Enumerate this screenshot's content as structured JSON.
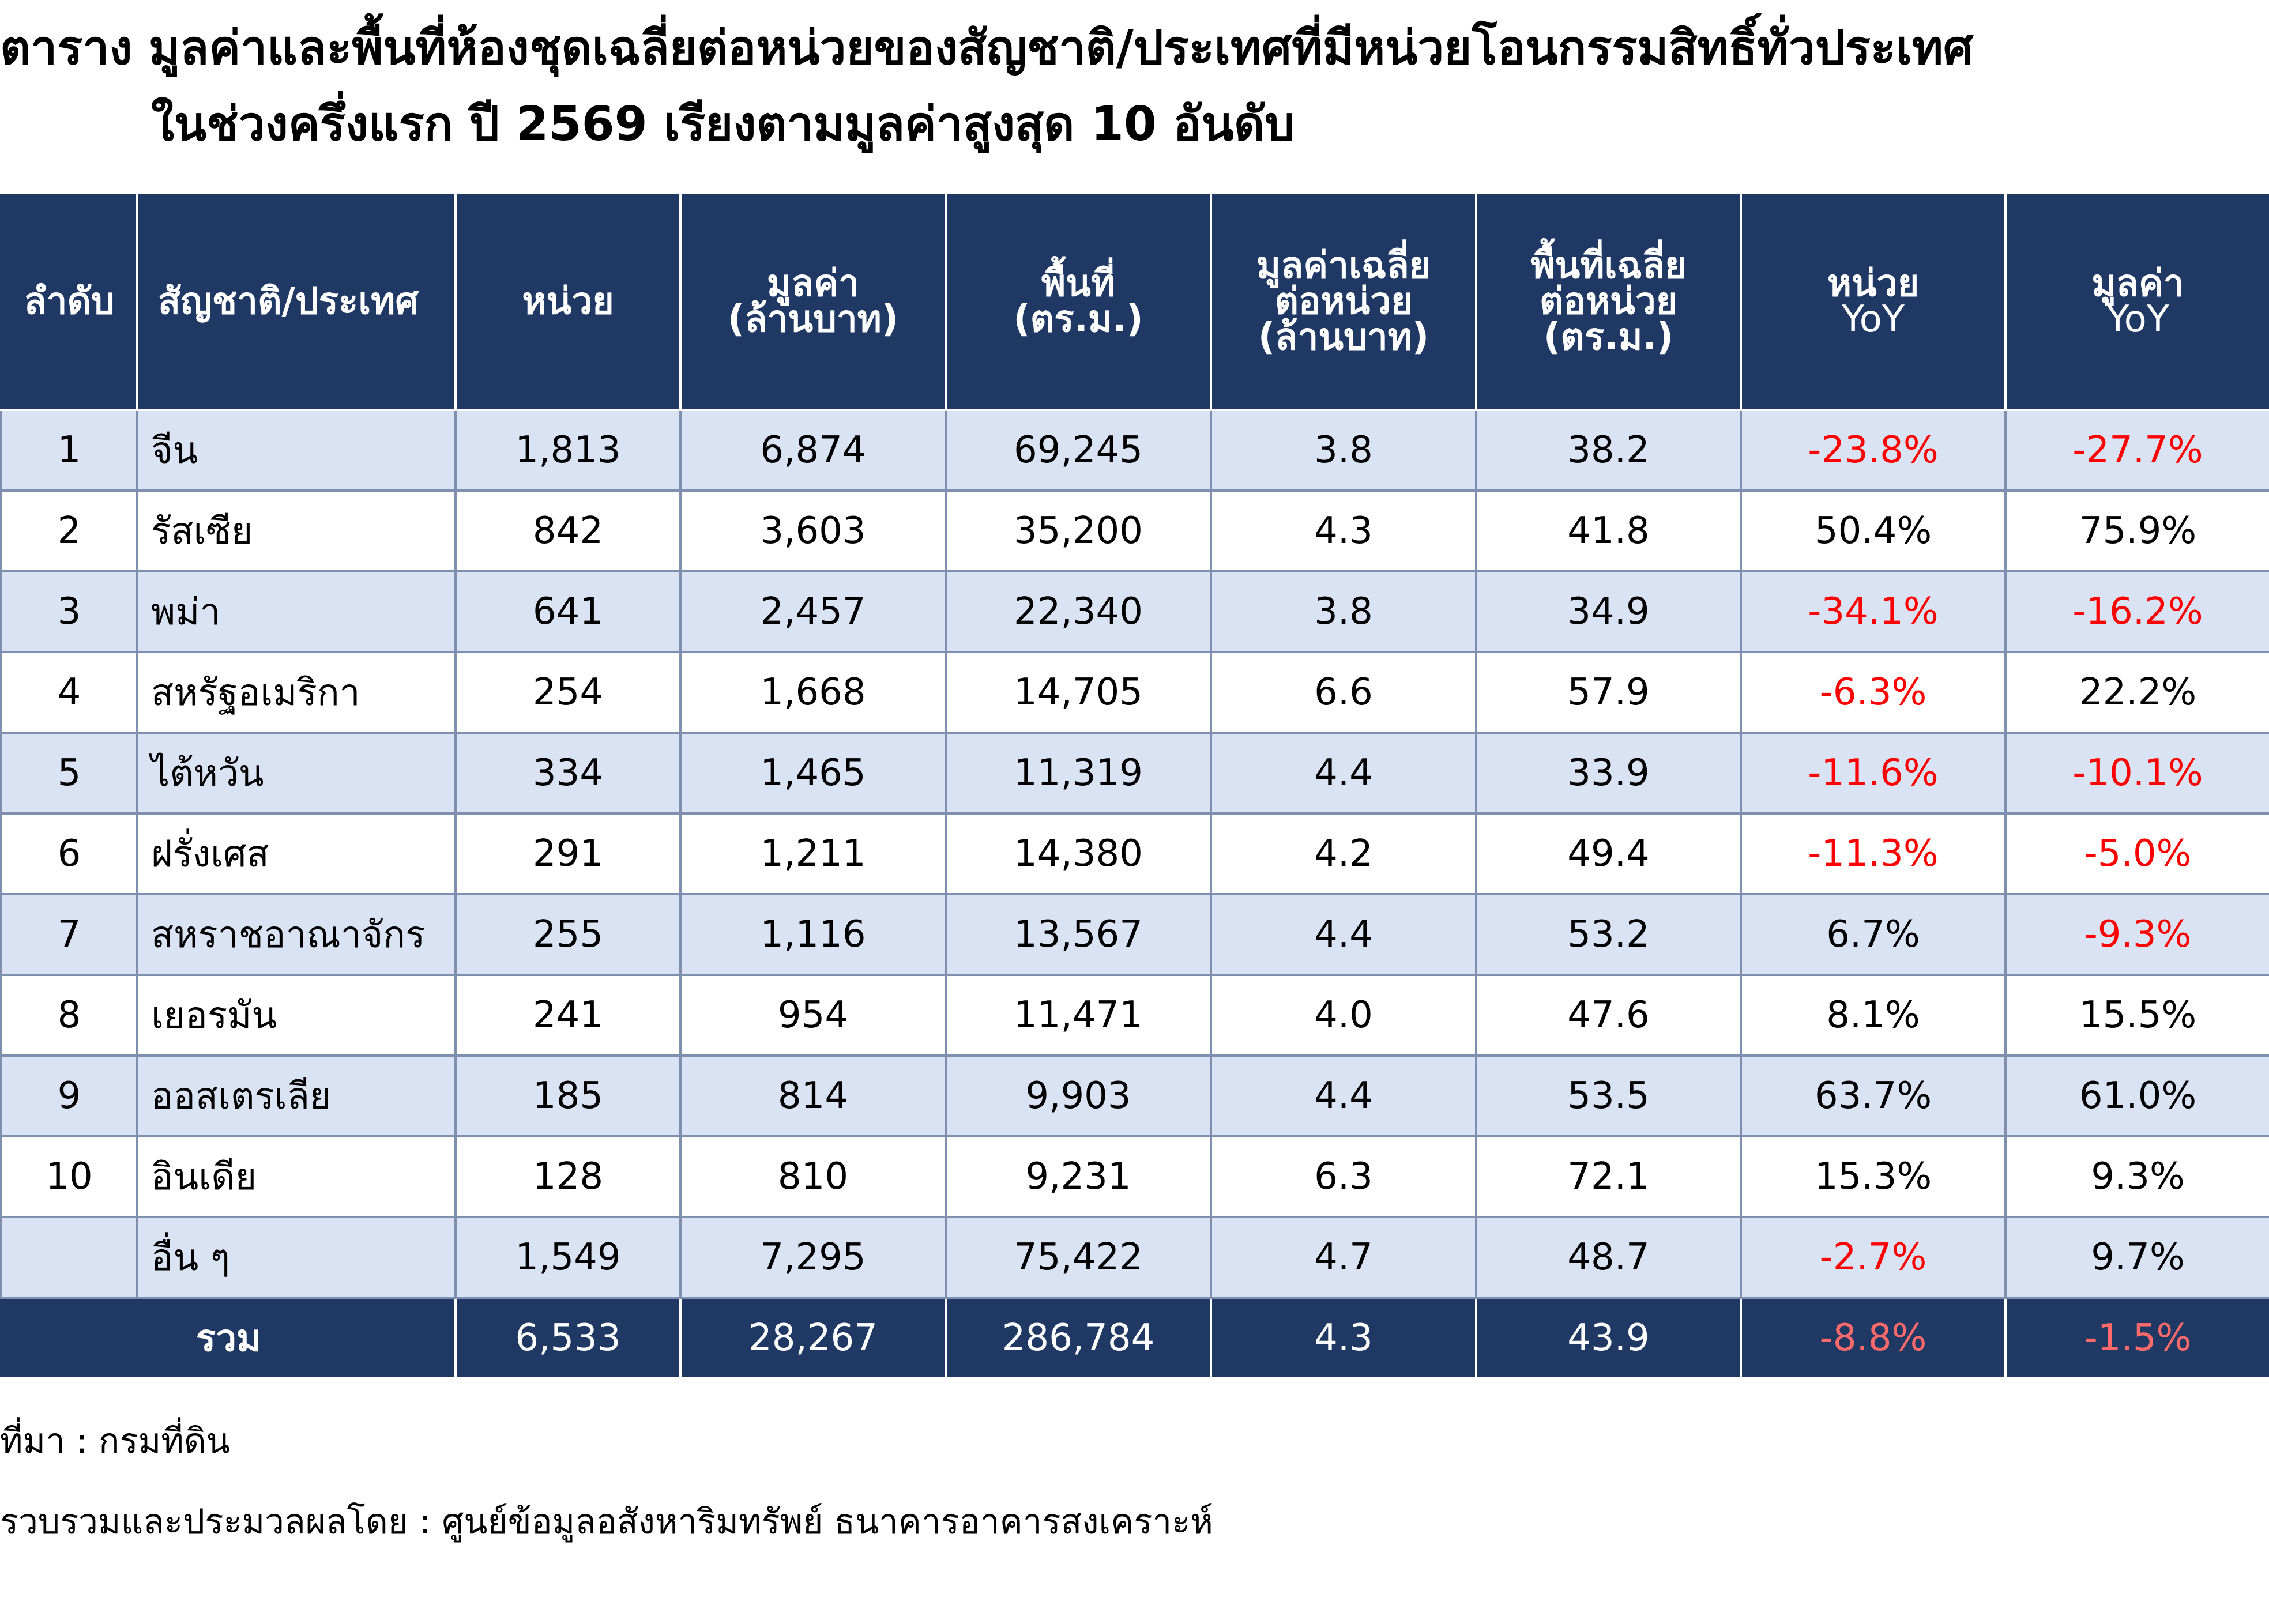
{
  "title": {
    "line1": "ตาราง มูลค่าและพื้นที่ห้องชุดเฉลี่ยต่อหน่วยของสัญชาติ/ประเทศที่มีหน่วยโอนกรรมสิทธิ์ทั่วประเทศ",
    "line2": "ในช่วงครึ่งแรก ปี 2569 เรียงตามมูลค่าสูงสุด 10 อันดับ"
  },
  "table": {
    "headers": {
      "rank": "ลำดับ",
      "country": "สัญชาติ/ประเทศ",
      "units": "หน่วย",
      "value": [
        "มูลค่า",
        "(ล้านบาท)"
      ],
      "area": [
        "พื้นที่",
        "(ตร.ม.)"
      ],
      "avg_value": [
        "มูลค่าเฉลี่ย",
        "ต่อหน่วย",
        "(ล้านบาท)"
      ],
      "avg_area": [
        "พื้นที่เฉลี่ย",
        "ต่อหน่วย",
        "(ตร.ม.)"
      ],
      "units_yoy": [
        "หน่วย",
        "YoY"
      ],
      "value_yoy": [
        "มูลค่า",
        "YoY"
      ]
    },
    "rows": [
      {
        "rank": "1",
        "country": "จีน",
        "units": "1,813",
        "value": "6,874",
        "area": "69,245",
        "avg_value": "3.8",
        "avg_area": "38.2",
        "units_yoy": "-23.8%",
        "value_yoy": "-27.7%"
      },
      {
        "rank": "2",
        "country": "รัสเซีย",
        "units": "842",
        "value": "3,603",
        "area": "35,200",
        "avg_value": "4.3",
        "avg_area": "41.8",
        "units_yoy": "50.4%",
        "value_yoy": "75.9%"
      },
      {
        "rank": "3",
        "country": "พม่า",
        "units": "641",
        "value": "2,457",
        "area": "22,340",
        "avg_value": "3.8",
        "avg_area": "34.9",
        "units_yoy": "-34.1%",
        "value_yoy": "-16.2%"
      },
      {
        "rank": "4",
        "country": "สหรัฐอเมริกา",
        "units": "254",
        "value": "1,668",
        "area": "14,705",
        "avg_value": "6.6",
        "avg_area": "57.9",
        "units_yoy": "-6.3%",
        "value_yoy": "22.2%"
      },
      {
        "rank": "5",
        "country": "ไต้หวัน",
        "units": "334",
        "value": "1,465",
        "area": "11,319",
        "avg_value": "4.4",
        "avg_area": "33.9",
        "units_yoy": "-11.6%",
        "value_yoy": "-10.1%"
      },
      {
        "rank": "6",
        "country": "ฝรั่งเศส",
        "units": "291",
        "value": "1,211",
        "area": "14,380",
        "avg_value": "4.2",
        "avg_area": "49.4",
        "units_yoy": "-11.3%",
        "value_yoy": "-5.0%"
      },
      {
        "rank": "7",
        "country": "สหราชอาณาจักร",
        "units": "255",
        "value": "1,116",
        "area": "13,567",
        "avg_value": "4.4",
        "avg_area": "53.2",
        "units_yoy": "6.7%",
        "value_yoy": "-9.3%"
      },
      {
        "rank": "8",
        "country": "เยอรมัน",
        "units": "241",
        "value": "954",
        "area": "11,471",
        "avg_value": "4.0",
        "avg_area": "47.6",
        "units_yoy": "8.1%",
        "value_yoy": "15.5%"
      },
      {
        "rank": "9",
        "country": "ออสเตรเลีย",
        "units": "185",
        "value": "814",
        "area": "9,903",
        "avg_value": "4.4",
        "avg_area": "53.5",
        "units_yoy": "63.7%",
        "value_yoy": "61.0%"
      },
      {
        "rank": "10",
        "country": "อินเดีย",
        "units": "128",
        "value": "810",
        "area": "9,231",
        "avg_value": "6.3",
        "avg_area": "72.1",
        "units_yoy": "15.3%",
        "value_yoy": "9.3%"
      },
      {
        "rank": "",
        "country": "อื่น ๆ",
        "units": "1,549",
        "value": "7,295",
        "area": "75,422",
        "avg_value": "4.7",
        "avg_area": "48.7",
        "units_yoy": "-2.7%",
        "value_yoy": "9.7%"
      }
    ],
    "total": {
      "label": "รวม",
      "units": "6,533",
      "value": "28,267",
      "area": "286,784",
      "avg_value": "4.3",
      "avg_area": "43.9",
      "units_yoy": "-8.8%",
      "value_yoy": "-1.5%"
    }
  },
  "footer": {
    "source": "ที่มา : กรมที่ดิน",
    "compiled_by": "รวบรวมและประมวลผลโดย : ศูนย์ข้อมูลอสังหาริมทรัพย์ ธนาคารอาคารสงเคราะห์"
  },
  "colors": {
    "header_bg": "#1f3864",
    "stripe": "#dae3f3",
    "negative": "#ff0000",
    "negative_on_dark": "#ff6b6b"
  }
}
